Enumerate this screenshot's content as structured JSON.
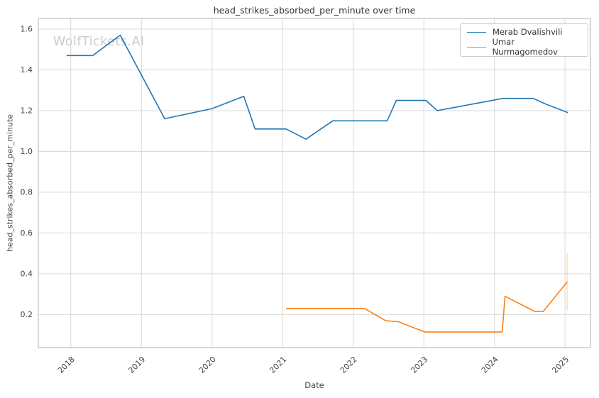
{
  "title": "head_strikes_absorbed_per_minute over time",
  "watermark": "WolfTickets.AI",
  "xlabel": "Date",
  "ylabel": "head_strikes_absorbed_per_minute",
  "chart_data": {
    "type": "line",
    "title": "head_strikes_absorbed_per_minute over time",
    "xlabel": "Date",
    "ylabel": "head_strikes_absorbed_per_minute",
    "grid": true,
    "legend_position": "upper right",
    "xlim": [
      2017.54,
      2025.36
    ],
    "ylim": [
      0.038,
      1.652
    ],
    "x_ticks": [
      2018,
      2019,
      2020,
      2021,
      2022,
      2023,
      2024,
      2025
    ],
    "y_ticks": [
      0.2,
      0.4,
      0.6,
      0.8,
      1.0,
      1.2,
      1.4,
      1.6
    ],
    "grid_color": "#d9d9d9",
    "spine_color": "#b3b3b3",
    "tick_label_color": "#444444",
    "series": [
      {
        "name": "Merab Dvalishvili",
        "color": "#1f77b4",
        "points": [
          [
            2017.94,
            1.47
          ],
          [
            2018.31,
            1.47
          ],
          [
            2018.7,
            1.57
          ],
          [
            2019.33,
            1.16
          ],
          [
            2020.0,
            1.21
          ],
          [
            2020.45,
            1.27
          ],
          [
            2020.61,
            1.11
          ],
          [
            2021.05,
            1.11
          ],
          [
            2021.33,
            1.06
          ],
          [
            2021.71,
            1.15
          ],
          [
            2022.48,
            1.15
          ],
          [
            2022.61,
            1.25
          ],
          [
            2023.03,
            1.25
          ],
          [
            2023.19,
            1.2
          ],
          [
            2024.12,
            1.26
          ],
          [
            2024.55,
            1.26
          ],
          [
            2024.74,
            1.23
          ],
          [
            2025.04,
            1.19
          ]
        ]
      },
      {
        "name": "Umar Nurmagomedov",
        "color": "#ff7f0e",
        "points": [
          [
            2021.05,
            0.23
          ],
          [
            2022.16,
            0.23
          ],
          [
            2022.46,
            0.17
          ],
          [
            2022.64,
            0.165
          ],
          [
            2023.01,
            0.115
          ],
          [
            2024.11,
            0.115
          ],
          [
            2024.15,
            0.29
          ],
          [
            2024.57,
            0.215
          ],
          [
            2024.69,
            0.215
          ],
          [
            2025.03,
            0.36
          ]
        ]
      }
    ],
    "annotations": [
      {
        "type": "vline-segment",
        "x": 2025.03,
        "y_from": 0.22,
        "y_to": 0.5,
        "color": "#ff7f0e",
        "opacity": 0.25
      }
    ]
  }
}
